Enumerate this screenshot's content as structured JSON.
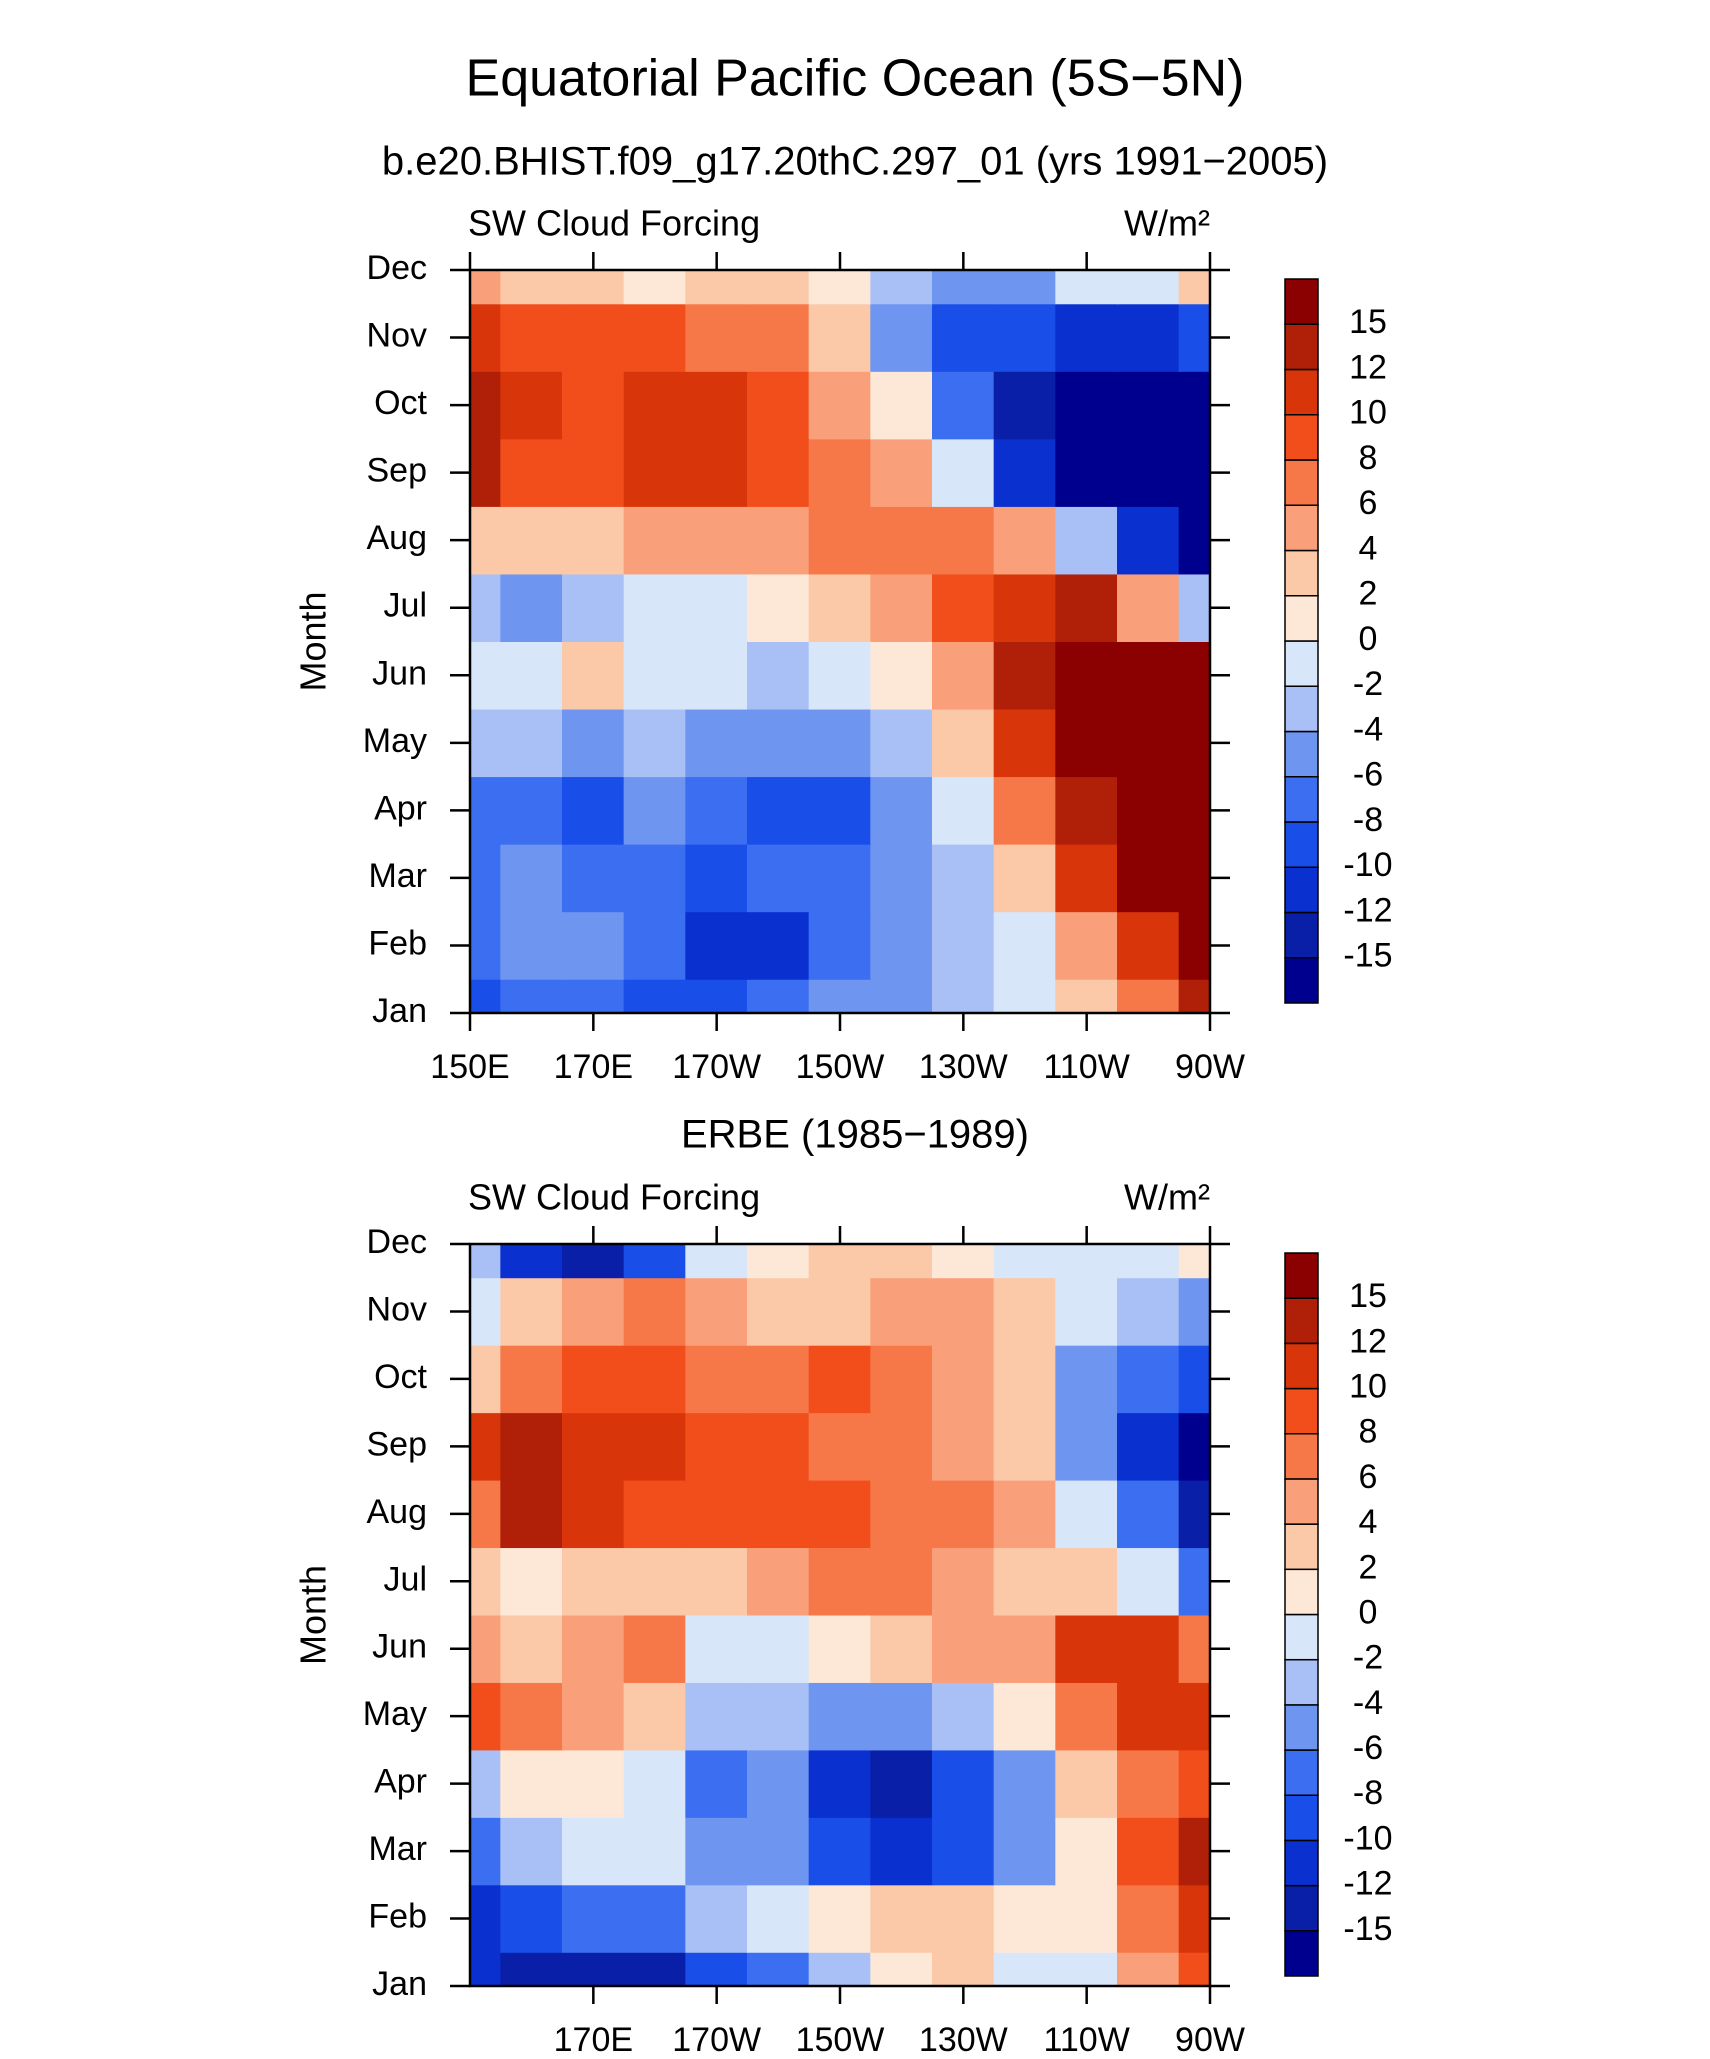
{
  "title": "Equatorial Pacific Ocean (5S−5N)",
  "chart_data": [
    {
      "type": "heatmap",
      "title": "b.e20.BHIST.f09_g17.20thC.297_01 (yrs 1991−2005)",
      "left_label": "SW Cloud Forcing",
      "right_label": "W/m²",
      "ylabel": "Month",
      "categories": [
        "Jan",
        "Feb",
        "Mar",
        "Apr",
        "May",
        "Jun",
        "Jul",
        "Aug",
        "Sep",
        "Oct",
        "Nov",
        "Dec"
      ],
      "x": [
        150,
        160,
        170,
        180,
        190,
        200,
        210,
        220,
        230,
        240,
        250,
        260,
        270
      ],
      "xlim": [
        150,
        270
      ],
      "xticks": [
        {
          "value": 150,
          "label": "150E"
        },
        {
          "value": 170,
          "label": "170E"
        },
        {
          "value": 190,
          "label": "170W"
        },
        {
          "value": 210,
          "label": "150W"
        },
        {
          "value": 230,
          "label": "130W"
        },
        {
          "value": 250,
          "label": "110W"
        },
        {
          "value": 270,
          "label": "90W"
        }
      ],
      "z": [
        [
          -10,
          -8,
          -8,
          -10,
          -10,
          -8,
          -6,
          -6,
          -4,
          -2,
          2,
          6,
          12
        ],
        [
          -8,
          -6,
          -6,
          -8,
          -12,
          -12,
          -8,
          -6,
          -4,
          -2,
          4,
          10,
          15
        ],
        [
          -8,
          -6,
          -8,
          -8,
          -10,
          -8,
          -8,
          -6,
          -4,
          2,
          10,
          16,
          18
        ],
        [
          -8,
          -8,
          -10,
          -6,
          -8,
          -10,
          -10,
          -6,
          -2,
          6,
          14,
          18,
          18
        ],
        [
          -4,
          -4,
          -6,
          -4,
          -6,
          -6,
          -6,
          -4,
          2,
          10,
          16,
          18,
          18
        ],
        [
          -2,
          -2,
          2,
          -2,
          -2,
          -4,
          -2,
          0,
          4,
          12,
          17,
          17,
          15
        ],
        [
          -4,
          -6,
          -4,
          -2,
          -2,
          0,
          2,
          4,
          8,
          10,
          12,
          4,
          -4
        ],
        [
          2,
          2,
          2,
          4,
          4,
          4,
          6,
          6,
          6,
          4,
          -4,
          -12,
          -16
        ],
        [
          12,
          8,
          8,
          10,
          10,
          8,
          6,
          4,
          -2,
          -12,
          -18,
          -18,
          -18
        ],
        [
          13,
          10,
          8,
          10,
          10,
          8,
          4,
          0,
          -8,
          -14,
          -18,
          -18,
          -18
        ],
        [
          10,
          9,
          8,
          8,
          6,
          6,
          2,
          -6,
          -10,
          -10,
          -12,
          -12,
          -10
        ],
        [
          4,
          2,
          2,
          0,
          2,
          2,
          0,
          -4,
          -6,
          -6,
          -2,
          -2,
          2
        ]
      ],
      "levels": [
        -15,
        -12,
        -10,
        -8,
        -6,
        -4,
        -2,
        0,
        2,
        4,
        6,
        8,
        10,
        12,
        15
      ],
      "colors": [
        "#00008f",
        "#0a1fa8",
        "#0a30d0",
        "#1a4ee8",
        "#3b6ef0",
        "#6e95f0",
        "#a8c0f5",
        "#d8e6fa",
        "#fde8d8",
        "#fbc8a8",
        "#f9a07a",
        "#f67848",
        "#f24e1c",
        "#d8360a",
        "#b02008",
        "#8b0000"
      ]
    },
    {
      "type": "heatmap",
      "title": "ERBE (1985−1989)",
      "left_label": "SW Cloud Forcing",
      "right_label": "W/m²",
      "ylabel": "Month",
      "categories": [
        "Jan",
        "Feb",
        "Mar",
        "Apr",
        "May",
        "Jun",
        "Jul",
        "Aug",
        "Sep",
        "Oct",
        "Nov",
        "Dec"
      ],
      "x": [
        150,
        160,
        170,
        180,
        190,
        200,
        210,
        220,
        230,
        240,
        250,
        260,
        270
      ],
      "xlim": [
        150,
        270
      ],
      "xticks": [
        {
          "value": 170,
          "label": "170E"
        },
        {
          "value": 190,
          "label": "170W"
        },
        {
          "value": 210,
          "label": "150W"
        },
        {
          "value": 230,
          "label": "130W"
        },
        {
          "value": 250,
          "label": "110W"
        },
        {
          "value": 270,
          "label": "90W"
        }
      ],
      "z": [
        [
          -12,
          -14,
          -14,
          -14,
          -10,
          -8,
          -4,
          0,
          2,
          -2,
          -2,
          4,
          8
        ],
        [
          -12,
          -10,
          -8,
          -8,
          -4,
          -2,
          0,
          2,
          2,
          0,
          0,
          6,
          10
        ],
        [
          -8,
          -4,
          -2,
          -2,
          -6,
          -6,
          -10,
          -12,
          -10,
          -6,
          0,
          8,
          14
        ],
        [
          -4,
          0,
          0,
          -2,
          -8,
          -6,
          -12,
          -14,
          -10,
          -6,
          2,
          6,
          8
        ],
        [
          8,
          6,
          4,
          2,
          -4,
          -4,
          -6,
          -6,
          -4,
          0,
          6,
          10,
          10
        ],
        [
          4,
          2,
          4,
          6,
          -2,
          -2,
          0,
          2,
          4,
          4,
          10,
          10,
          6
        ],
        [
          2,
          0,
          2,
          2,
          2,
          4,
          6,
          6,
          4,
          2,
          2,
          -2,
          -8
        ],
        [
          6,
          12,
          10,
          8,
          8,
          8,
          8,
          6,
          6,
          4,
          -2,
          -8,
          -14
        ],
        [
          10,
          12,
          10,
          10,
          8,
          8,
          6,
          6,
          4,
          2,
          -6,
          -12,
          -16
        ],
        [
          2,
          6,
          8,
          8,
          6,
          6,
          8,
          6,
          4,
          2,
          -6,
          -8,
          -10
        ],
        [
          -2,
          2,
          4,
          6,
          4,
          2,
          2,
          4,
          4,
          2,
          -2,
          -4,
          -6
        ],
        [
          -4,
          -12,
          -14,
          -10,
          -2,
          0,
          2,
          2,
          0,
          -2,
          -2,
          -2,
          0
        ]
      ],
      "levels": [
        -15,
        -12,
        -10,
        -8,
        -6,
        -4,
        -2,
        0,
        2,
        4,
        6,
        8,
        10,
        12,
        15
      ],
      "colors": [
        "#00008f",
        "#0a1fa8",
        "#0a30d0",
        "#1a4ee8",
        "#3b6ef0",
        "#6e95f0",
        "#a8c0f5",
        "#d8e6fa",
        "#fde8d8",
        "#fbc8a8",
        "#f9a07a",
        "#f67848",
        "#f24e1c",
        "#d8360a",
        "#b02008",
        "#8b0000"
      ]
    }
  ]
}
